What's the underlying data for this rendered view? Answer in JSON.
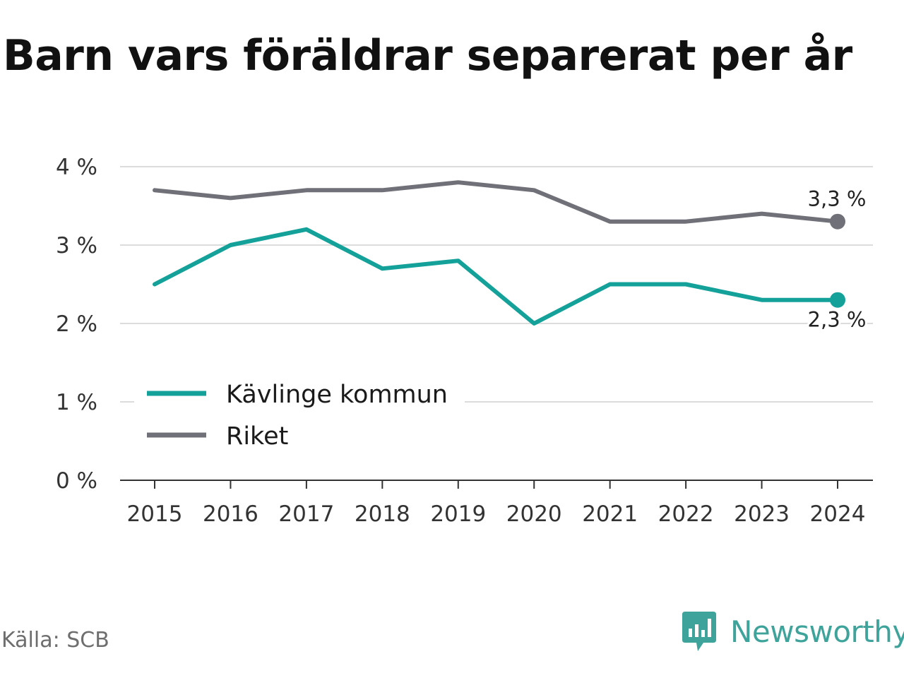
{
  "title": "Barn vars föräldrar separerat per år",
  "source": "Källa: SCB",
  "brand": {
    "name": "Newsworthy",
    "logo_icon": "newsworthy-logo-icon",
    "color": "#3ea39a"
  },
  "chart_data": {
    "type": "line",
    "title": "Barn vars föräldrar separerat per år",
    "xlabel": "",
    "ylabel": "",
    "x": [
      "2015",
      "2016",
      "2017",
      "2018",
      "2019",
      "2020",
      "2021",
      "2022",
      "2023",
      "2024"
    ],
    "ylim": [
      0,
      4
    ],
    "yticks": [
      0,
      1,
      2,
      3,
      4
    ],
    "ytick_labels": [
      "0 %",
      "1 %",
      "2 %",
      "3 %",
      "4 %"
    ],
    "grid": true,
    "legend_position": "bottom-left",
    "series": [
      {
        "name": "Kävlinge kommun",
        "color": "#14a19a",
        "values": [
          2.5,
          3.0,
          3.2,
          2.7,
          2.8,
          2.0,
          2.5,
          2.5,
          2.3,
          2.3
        ],
        "end_label": "2,3 %"
      },
      {
        "name": "Riket",
        "color": "#707078",
        "values": [
          3.7,
          3.6,
          3.7,
          3.7,
          3.8,
          3.7,
          3.3,
          3.3,
          3.4,
          3.3
        ],
        "end_label": "3,3 %"
      }
    ]
  }
}
